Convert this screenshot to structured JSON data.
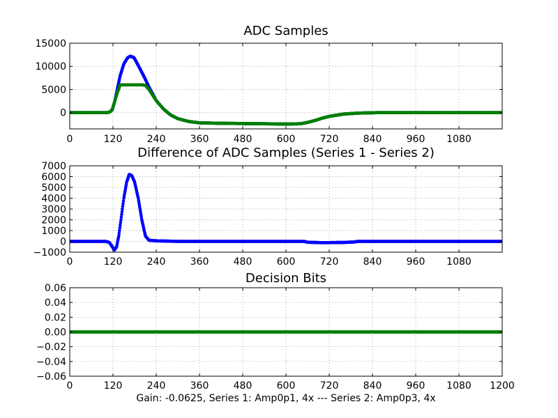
{
  "figure": {
    "footer": "Gain: -0.0625, Series 1: Amp0p1, 4x --- Series 2: Amp0p3, 4x"
  },
  "colors": {
    "series1": "#0000ff",
    "series2": "#007f00",
    "grid": "#888888"
  },
  "chart_data": [
    {
      "type": "scatter",
      "title": "ADC Samples",
      "xlabel": "",
      "ylabel": "",
      "xlim": [
        0,
        1200
      ],
      "ylim": [
        -3500,
        15000
      ],
      "grid": true,
      "x_ticks": [
        0,
        120,
        240,
        360,
        480,
        600,
        720,
        840,
        960,
        1080
      ],
      "y_ticks": [
        0,
        5000,
        10000,
        15000
      ],
      "series": [
        {
          "color": "#0000ff",
          "points": [
            [
              0,
              0
            ],
            [
              100,
              0
            ],
            [
              110,
              100
            ],
            [
              118,
              600
            ],
            [
              125,
              2500
            ],
            [
              133,
              5500
            ],
            [
              140,
              8000
            ],
            [
              150,
              10500
            ],
            [
              160,
              11800
            ],
            [
              168,
              12200
            ],
            [
              178,
              11900
            ],
            [
              188,
              10500
            ],
            [
              198,
              9000
            ],
            [
              208,
              7500
            ],
            [
              220,
              5500
            ],
            [
              240,
              2600
            ],
            [
              260,
              800
            ],
            [
              280,
              -500
            ],
            [
              300,
              -1300
            ],
            [
              330,
              -1900
            ],
            [
              360,
              -2200
            ],
            [
              420,
              -2300
            ],
            [
              480,
              -2350
            ],
            [
              540,
              -2400
            ],
            [
              600,
              -2450
            ],
            [
              640,
              -2400
            ],
            [
              660,
              -2100
            ],
            [
              680,
              -1700
            ],
            [
              700,
              -1200
            ],
            [
              720,
              -800
            ],
            [
              760,
              -300
            ],
            [
              800,
              -100
            ],
            [
              850,
              0
            ],
            [
              1200,
              0
            ]
          ]
        },
        {
          "color": "#007f00",
          "points": [
            [
              0,
              0
            ],
            [
              100,
              0
            ],
            [
              110,
              100
            ],
            [
              118,
              700
            ],
            [
              125,
              2500
            ],
            [
              133,
              4500
            ],
            [
              140,
              6000
            ],
            [
              160,
              6000
            ],
            [
              180,
              6000
            ],
            [
              200,
              6000
            ],
            [
              210,
              5900
            ],
            [
              220,
              5000
            ],
            [
              240,
              2600
            ],
            [
              260,
              800
            ],
            [
              280,
              -500
            ],
            [
              300,
              -1300
            ],
            [
              330,
              -1900
            ],
            [
              360,
              -2200
            ],
            [
              420,
              -2300
            ],
            [
              480,
              -2350
            ],
            [
              540,
              -2400
            ],
            [
              600,
              -2450
            ],
            [
              640,
              -2400
            ],
            [
              660,
              -2100
            ],
            [
              680,
              -1700
            ],
            [
              700,
              -1200
            ],
            [
              720,
              -800
            ],
            [
              760,
              -300
            ],
            [
              800,
              -100
            ],
            [
              850,
              0
            ],
            [
              1200,
              0
            ]
          ]
        }
      ]
    },
    {
      "type": "scatter",
      "title": "Difference of ADC Samples (Series 1 - Series 2)",
      "xlabel": "",
      "ylabel": "",
      "xlim": [
        0,
        1200
      ],
      "ylim": [
        -1000,
        7000
      ],
      "grid": true,
      "x_ticks": [
        0,
        120,
        240,
        360,
        480,
        600,
        720,
        840,
        960,
        1080
      ],
      "y_ticks": [
        -1000,
        0,
        1000,
        2000,
        3000,
        4000,
        5000,
        6000,
        7000
      ],
      "series": [
        {
          "color": "#0000ff",
          "points": [
            [
              0,
              0
            ],
            [
              100,
              0
            ],
            [
              110,
              -100
            ],
            [
              118,
              -500
            ],
            [
              124,
              -800
            ],
            [
              130,
              -500
            ],
            [
              136,
              500
            ],
            [
              142,
              2000
            ],
            [
              150,
              4000
            ],
            [
              158,
              5500
            ],
            [
              165,
              6200
            ],
            [
              172,
              6100
            ],
            [
              180,
              5500
            ],
            [
              190,
              4000
            ],
            [
              200,
              2000
            ],
            [
              210,
              500
            ],
            [
              220,
              100
            ],
            [
              240,
              50
            ],
            [
              300,
              0
            ],
            [
              650,
              0
            ],
            [
              660,
              -80
            ],
            [
              700,
              -120
            ],
            [
              760,
              -100
            ],
            [
              790,
              -50
            ],
            [
              800,
              0
            ],
            [
              1200,
              0
            ]
          ]
        }
      ]
    },
    {
      "type": "scatter",
      "title": "Decision Bits",
      "xlabel": "Gain: -0.0625, Series 1: Amp0p1, 4x --- Series 2: Amp0p3, 4x",
      "ylabel": "",
      "xlim": [
        0,
        1200
      ],
      "ylim": [
        -0.06,
        0.06
      ],
      "grid": true,
      "x_ticks": [
        0,
        120,
        240,
        360,
        480,
        600,
        720,
        840,
        960,
        1080,
        1200
      ],
      "y_ticks": [
        -0.06,
        -0.04,
        -0.02,
        0.0,
        0.02,
        0.04,
        0.06
      ],
      "series": [
        {
          "color": "#007f00",
          "points": [
            [
              0,
              0
            ],
            [
              1200,
              0
            ]
          ]
        }
      ]
    }
  ]
}
